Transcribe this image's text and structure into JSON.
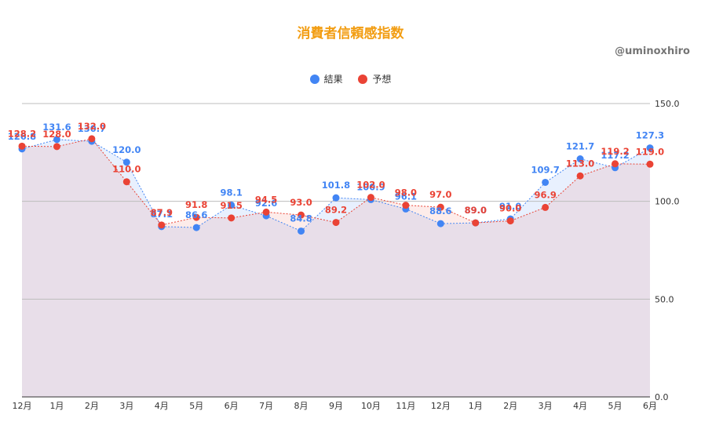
{
  "chart_data": {
    "type": "area",
    "title": "消費者信頼感指数",
    "watermark": "@uminoxhiro",
    "categories": [
      "12月",
      "1月",
      "2月",
      "3月",
      "4月",
      "5月",
      "6月",
      "7月",
      "8月",
      "9月",
      "10月",
      "11月",
      "12月",
      "1月",
      "2月",
      "3月",
      "4月",
      "5月",
      "6月"
    ],
    "series": [
      {
        "name": "結果",
        "color": "#4285f4",
        "values": [
          126.8,
          131.6,
          130.7,
          120.0,
          87.1,
          86.6,
          98.1,
          92.6,
          84.8,
          101.8,
          100.9,
          96.1,
          88.6,
          89.0,
          91.0,
          109.7,
          121.7,
          117.2,
          127.3
        ]
      },
      {
        "name": "予想",
        "color": "#ea4335",
        "values": [
          128.2,
          128.0,
          132.0,
          110.0,
          87.9,
          91.8,
          91.5,
          94.5,
          93.0,
          89.2,
          102.0,
          98.0,
          97.0,
          89.0,
          90.0,
          96.9,
          113.0,
          119.2,
          119.0
        ]
      }
    ],
    "y_ticks": [
      "0.0",
      "50.0",
      "100.0",
      "150.0"
    ],
    "ylim": [
      0,
      150
    ],
    "y_axis_side": "right",
    "grid": true,
    "legend_position": "top"
  }
}
